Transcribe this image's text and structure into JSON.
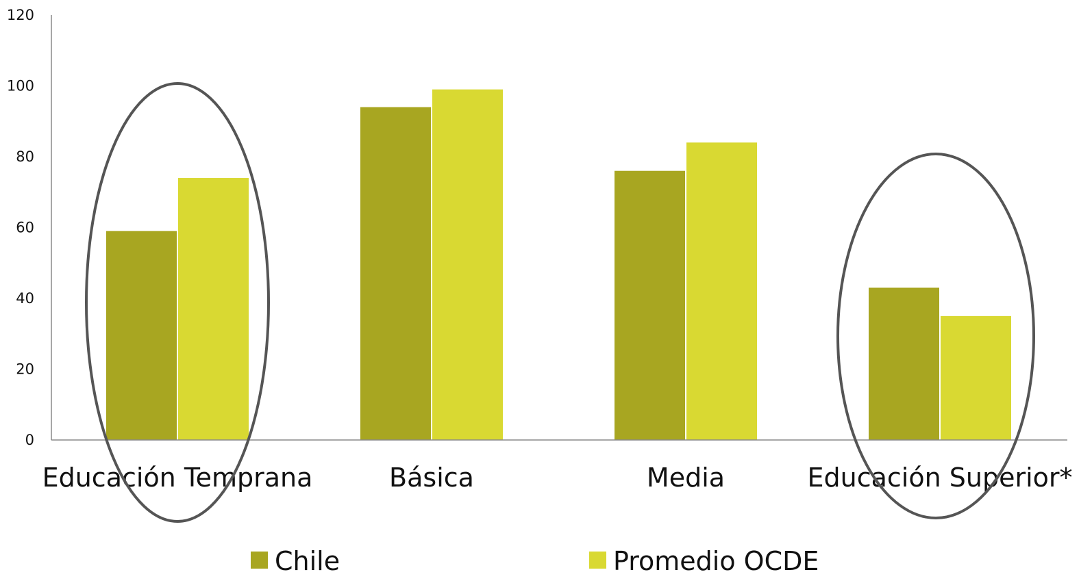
{
  "chart_data": {
    "type": "bar",
    "categories": [
      "Educación Temprana",
      "Básica",
      "Media",
      "Educación Superior*"
    ],
    "series": [
      {
        "name": "Chile",
        "values": [
          59,
          94,
          76,
          43
        ],
        "color": "#a8a621"
      },
      {
        "name": "Promedio OCDE",
        "values": [
          74,
          99,
          84,
          35
        ],
        "color": "#d9d932"
      }
    ],
    "y_ticks": [
      "0",
      "20",
      "40",
      "60",
      "80",
      "100",
      "120"
    ],
    "ylim": [
      0,
      120
    ],
    "grid": false,
    "legend_position": "bottom",
    "highlighted_categories": [
      "Educación Temprana",
      "Educación Superior*"
    ],
    "ellipse_color": "#555555"
  }
}
